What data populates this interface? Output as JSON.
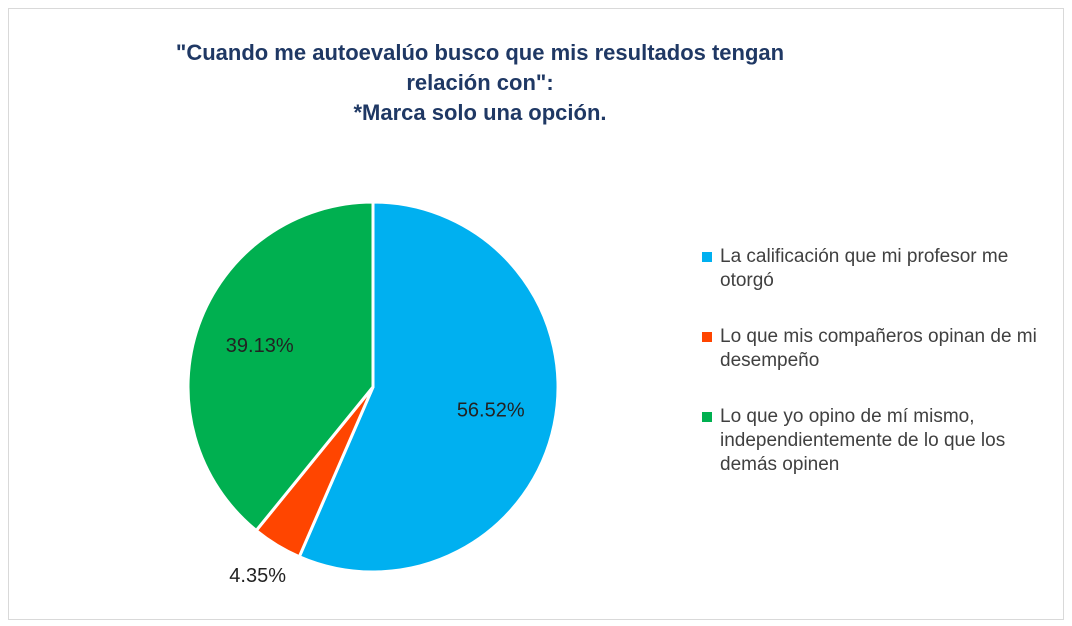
{
  "chart_data": {
    "type": "pie",
    "title": "\"Cuando me autoevalúo busco que mis resultados tengan relación con\":",
    "subtitle": "*Marca solo una opción.",
    "categories": [
      "La calificación que mi profesor me otorgó",
      "Lo que mis compañeros opinan de mi desempeño",
      "Lo que yo opino de mí mismo, independientemente de lo que los demás opinen"
    ],
    "values": [
      56.52,
      4.35,
      39.13
    ],
    "value_labels": [
      "56.52%",
      "4.35%",
      "39.13%"
    ],
    "colors": [
      "#00b0f0",
      "#ff4500",
      "#00b050"
    ],
    "legend": "right"
  }
}
